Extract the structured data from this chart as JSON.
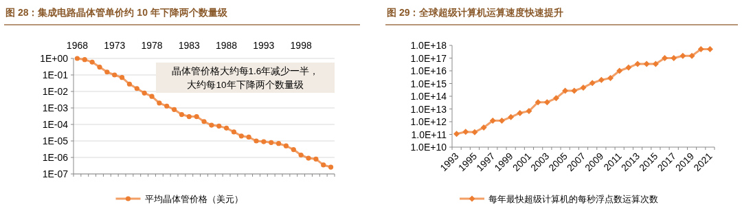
{
  "chart_data": [
    {
      "type": "line",
      "title": "图 28：集成电路晶体管单价约 10 年下降两个数量级",
      "categories": [
        "1968",
        null,
        null,
        null,
        null,
        "1973",
        null,
        null,
        null,
        null,
        "1978",
        null,
        null,
        null,
        null,
        "1983",
        null,
        null,
        null,
        null,
        "1988",
        null,
        null,
        null,
        null,
        "1993",
        null,
        null,
        null,
        null,
        "1998",
        null,
        null,
        null,
        null
      ],
      "series": [
        {
          "name": "平均晶体管价格（美元）",
          "color": "#ed7d31",
          "values": [
            1,
            0.85,
            0.6,
            0.3,
            0.15,
            0.1,
            0.07,
            0.028,
            0.015,
            0.008,
            0.005,
            0.002,
            0.0013,
            0.0008,
            0.0004,
            0.0003,
            0.0003,
            0.00015,
            9e-05,
            8e-05,
            6e-05,
            3.5e-05,
            2e-05,
            1.7e-05,
            1e-05,
            9e-06,
            8e-06,
            7e-06,
            5e-06,
            3e-06,
            1.4e-06,
            9e-07,
            8e-07,
            3.5e-07,
            2.6e-07
          ]
        }
      ],
      "log": true,
      "ylim": [
        1e-07,
        1
      ],
      "yticks": [
        {
          "value": 1,
          "label": "1E+00"
        },
        {
          "value": 0.1,
          "label": "1E-01"
        },
        {
          "value": 0.01,
          "label": "1E-02"
        },
        {
          "value": 0.001,
          "label": "1E-03"
        },
        {
          "value": 0.0001,
          "label": "1E-04"
        },
        {
          "value": 1e-05,
          "label": "1E-05"
        },
        {
          "value": 1e-06,
          "label": "1E-06"
        },
        {
          "value": 1e-07,
          "label": "1E-07"
        }
      ],
      "grid": "y",
      "marker": "circle",
      "legend": "bottom",
      "annotations": [
        "晶体管价格大约每1.6年减少一半，",
        "大约每10年下降两个数量级"
      ]
    },
    {
      "type": "line",
      "title": "图 29：全球超级计算机运算速度快速提升",
      "categories": [
        "1993",
        null,
        "1995",
        null,
        "1997",
        null,
        "1999",
        null,
        "2001",
        null,
        "2003",
        null,
        "2005",
        null,
        "2007",
        null,
        "2009",
        null,
        "2011",
        null,
        "2013",
        null,
        "2015",
        null,
        "2017",
        null,
        "2019",
        null,
        "2021"
      ],
      "series": [
        {
          "name": "每年最快超级计算机的每秒浮点数运算次数",
          "color": "#ed7d31",
          "values": [
            110000000000.0,
            160000000000.0,
            150000000000.0,
            350000000000.0,
            1200000000000.0,
            1200000000000.0,
            2300000000000.0,
            4800000000000.0,
            6800000000000.0,
            34000000000000.0,
            34000000000000.0,
            70000000000000.0,
            270000000000000.0,
            270000000000000.0,
            480000000000000.0,
            1100000000000000.0,
            1900000000000000.0,
            2700000000000000.0,
            1e+16,
            1.8e+16,
            3.5e+16,
            3.5e+16,
            3.5e+16,
            1e+17,
            1e+17,
            1.5e+17,
            1.5e+17,
            5e+17,
            5e+17
          ]
        }
      ],
      "log": true,
      "ylim": [
        10000000000.0,
        1e+18
      ],
      "yticks": [
        {
          "value": 10000000000.0,
          "label": "1.0E+10"
        },
        {
          "value": 100000000000.0,
          "label": "1.0E+11"
        },
        {
          "value": 1000000000000.0,
          "label": "1.0E+12"
        },
        {
          "value": 10000000000000.0,
          "label": "1.0E+13"
        },
        {
          "value": 100000000000000.0,
          "label": "1.0E+14"
        },
        {
          "value": 1000000000000000.0,
          "label": "1.0E+15"
        },
        {
          "value": 1e+16,
          "label": "1.0E+16"
        },
        {
          "value": 1e+17,
          "label": "1.0E+17"
        },
        {
          "value": 1e+18,
          "label": "1.0E+18"
        }
      ],
      "marker": "diamond",
      "legend": "bottom"
    }
  ]
}
